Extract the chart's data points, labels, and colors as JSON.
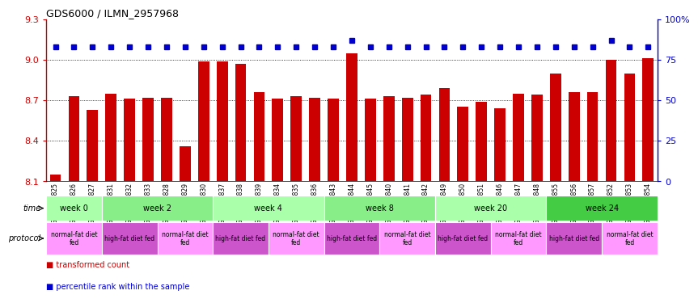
{
  "title": "GDS6000 / ILMN_2957968",
  "samples": [
    "GSM1577825",
    "GSM1577826",
    "GSM1577827",
    "GSM1577831",
    "GSM1577832",
    "GSM1577833",
    "GSM1577828",
    "GSM1577829",
    "GSM1577830",
    "GSM1577837",
    "GSM1577838",
    "GSM1577839",
    "GSM1577834",
    "GSM1577835",
    "GSM1577836",
    "GSM1577843",
    "GSM1577844",
    "GSM1577845",
    "GSM1577840",
    "GSM1577841",
    "GSM1577842",
    "GSM1577849",
    "GSM1577850",
    "GSM1577851",
    "GSM1577846",
    "GSM1577847",
    "GSM1577848",
    "GSM1577855",
    "GSM1577856",
    "GSM1577857",
    "GSM1577852",
    "GSM1577853",
    "GSM1577854"
  ],
  "bar_values": [
    8.15,
    8.73,
    8.63,
    8.75,
    8.71,
    8.72,
    8.72,
    8.36,
    8.99,
    8.99,
    8.97,
    8.76,
    8.71,
    8.73,
    8.72,
    8.71,
    9.05,
    8.71,
    8.73,
    8.72,
    8.74,
    8.79,
    8.65,
    8.69,
    8.64,
    8.75,
    8.74,
    8.9,
    8.76,
    8.76,
    9.0,
    8.9,
    9.01
  ],
  "percentile_values": [
    83,
    83,
    83,
    83,
    83,
    83,
    83,
    83,
    83,
    83,
    83,
    83,
    83,
    83,
    83,
    83,
    87,
    83,
    83,
    83,
    83,
    83,
    83,
    83,
    83,
    83,
    83,
    83,
    83,
    83,
    87,
    83,
    83
  ],
  "ylim": [
    8.1,
    9.3
  ],
  "yticks": [
    8.1,
    8.4,
    8.7,
    9.0,
    9.3
  ],
  "y2lim": [
    0,
    100
  ],
  "y2ticks": [
    0,
    25,
    50,
    75,
    100
  ],
  "y2ticklabels": [
    "0",
    "25",
    "50",
    "75",
    "100%"
  ],
  "bar_color": "#cc0000",
  "dot_color": "#0000cc",
  "hlines": [
    8.4,
    8.7,
    9.0
  ],
  "time_groups": [
    {
      "label": "week 0",
      "start": 0,
      "end": 3
    },
    {
      "label": "week 2",
      "start": 3,
      "end": 9
    },
    {
      "label": "week 4",
      "start": 9,
      "end": 15
    },
    {
      "label": "week 8",
      "start": 15,
      "end": 21
    },
    {
      "label": "week 20",
      "start": 21,
      "end": 27
    },
    {
      "label": "week 24",
      "start": 27,
      "end": 33
    }
  ],
  "time_colors": [
    "#aaffaa",
    "#88ee88",
    "#aaffaa",
    "#88ee88",
    "#aaffaa",
    "#44cc44"
  ],
  "protocol_groups": [
    {
      "label": "normal-fat diet\nfed",
      "start": 0,
      "end": 3,
      "color": "#ff99ff"
    },
    {
      "label": "high-fat diet fed",
      "start": 3,
      "end": 6,
      "color": "#cc55cc"
    },
    {
      "label": "normal-fat diet\nfed",
      "start": 6,
      "end": 9,
      "color": "#ff99ff"
    },
    {
      "label": "high-fat diet fed",
      "start": 9,
      "end": 12,
      "color": "#cc55cc"
    },
    {
      "label": "normal-fat diet\nfed",
      "start": 12,
      "end": 15,
      "color": "#ff99ff"
    },
    {
      "label": "high-fat diet fed",
      "start": 15,
      "end": 18,
      "color": "#cc55cc"
    },
    {
      "label": "normal-fat diet\nfed",
      "start": 18,
      "end": 21,
      "color": "#ff99ff"
    },
    {
      "label": "high-fat diet fed",
      "start": 21,
      "end": 24,
      "color": "#cc55cc"
    },
    {
      "label": "normal-fat diet\nfed",
      "start": 24,
      "end": 27,
      "color": "#ff99ff"
    },
    {
      "label": "high-fat diet fed",
      "start": 27,
      "end": 30,
      "color": "#cc55cc"
    },
    {
      "label": "normal-fat diet\nfed",
      "start": 30,
      "end": 33,
      "color": "#ff99ff"
    }
  ],
  "legend_bar_label": "transformed count",
  "legend_dot_label": "percentile rank within the sample",
  "n_samples": 33
}
